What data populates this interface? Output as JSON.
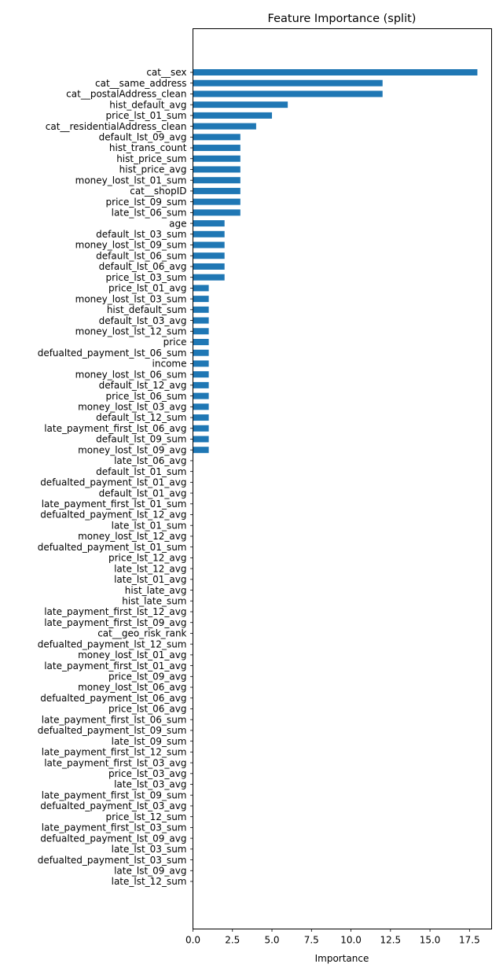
{
  "chart_data": {
    "type": "bar",
    "orientation": "horizontal",
    "title": "Feature Importance (split)",
    "xlabel": "Importance",
    "ylabel": "",
    "xlim": [
      0,
      18.9
    ],
    "xticks": [
      "0.0",
      "2.5",
      "5.0",
      "7.5",
      "10.0",
      "12.5",
      "15.0",
      "17.5"
    ],
    "grid": false,
    "bar_color": "#1f77b4",
    "categories": [
      "cat__sex",
      "cat__same_address",
      "cat__postalAddress_clean",
      "hist_default_avg",
      "price_lst_01_sum",
      "cat__residentialAddress_clean",
      "default_lst_09_avg",
      "hist_trans_count",
      "hist_price_sum",
      "hist_price_avg",
      "money_lost_lst_01_sum",
      "cat__shopID",
      "price_lst_09_sum",
      "late_lst_06_sum",
      "age",
      "default_lst_03_sum",
      "money_lost_lst_09_sum",
      "default_lst_06_sum",
      "default_lst_06_avg",
      "price_lst_03_sum",
      "price_lst_01_avg",
      "money_lost_lst_03_sum",
      "hist_default_sum",
      "default_lst_03_avg",
      "money_lost_lst_12_sum",
      "price",
      "defualted_payment_lst_06_sum",
      "income",
      "money_lost_lst_06_sum",
      "default_lst_12_avg",
      "price_lst_06_sum",
      "money_lost_lst_03_avg",
      "default_lst_12_sum",
      "late_payment_first_lst_06_avg",
      "default_lst_09_sum",
      "money_lost_lst_09_avg",
      "late_lst_06_avg",
      "default_lst_01_sum",
      "defualted_payment_lst_01_avg",
      "default_lst_01_avg",
      "late_payment_first_lst_01_sum",
      "defualted_payment_lst_12_avg",
      "late_lst_01_sum",
      "money_lost_lst_12_avg",
      "defualted_payment_lst_01_sum",
      "price_lst_12_avg",
      "late_lst_12_avg",
      "late_lst_01_avg",
      "hist_late_avg",
      "hist_late_sum",
      "late_payment_first_lst_12_avg",
      "late_payment_first_lst_09_avg",
      "cat__geo_risk_rank",
      "defualted_payment_lst_12_sum",
      "money_lost_lst_01_avg",
      "late_payment_first_lst_01_avg",
      "price_lst_09_avg",
      "money_lost_lst_06_avg",
      "defualted_payment_lst_06_avg",
      "price_lst_06_avg",
      "late_payment_first_lst_06_sum",
      "defualted_payment_lst_09_sum",
      "late_lst_09_sum",
      "late_payment_first_lst_12_sum",
      "late_payment_first_lst_03_avg",
      "price_lst_03_avg",
      "late_lst_03_avg",
      "late_payment_first_lst_09_sum",
      "defualted_payment_lst_03_avg",
      "price_lst_12_sum",
      "late_payment_first_lst_03_sum",
      "defualted_payment_lst_09_avg",
      "late_lst_03_sum",
      "defualted_payment_lst_03_sum",
      "late_lst_09_avg",
      "late_lst_12_sum"
    ],
    "values": [
      18,
      12,
      12,
      6,
      5,
      4,
      3,
      3,
      3,
      3,
      3,
      3,
      3,
      3,
      2,
      2,
      2,
      2,
      2,
      2,
      1,
      1,
      1,
      1,
      1,
      1,
      1,
      1,
      1,
      1,
      1,
      1,
      1,
      1,
      1,
      1,
      0,
      0,
      0,
      0,
      0,
      0,
      0,
      0,
      0,
      0,
      0,
      0,
      0,
      0,
      0,
      0,
      0,
      0,
      0,
      0,
      0,
      0,
      0,
      0,
      0,
      0,
      0,
      0,
      0,
      0,
      0,
      0,
      0,
      0,
      0,
      0,
      0,
      0,
      0,
      0
    ]
  }
}
